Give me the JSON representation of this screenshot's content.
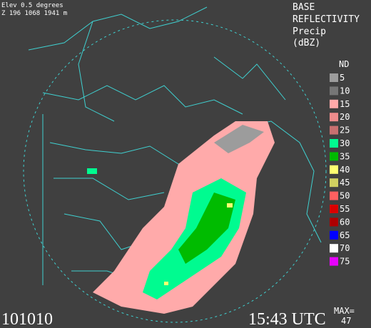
{
  "header": {
    "elevation": "Elev 0.5 degrees",
    "site_info": "Z 196 1068 1941 m"
  },
  "product": {
    "line1": "BASE",
    "line2": "REFLECTIVITY",
    "line3": "Precip",
    "line4": "(dBZ)"
  },
  "legend": {
    "no_data": "ND",
    "items": [
      {
        "label": "5",
        "color": "#9c9c9c"
      },
      {
        "label": "10",
        "color": "#767676"
      },
      {
        "label": "15",
        "color": "#ffaaaa"
      },
      {
        "label": "20",
        "color": "#ee8c8c"
      },
      {
        "label": "25",
        "color": "#c97070"
      },
      {
        "label": "30",
        "color": "#00fb90"
      },
      {
        "label": "35",
        "color": "#00bb00"
      },
      {
        "label": "40",
        "color": "#ffff70"
      },
      {
        "label": "45",
        "color": "#d0d060"
      },
      {
        "label": "50",
        "color": "#ff6060"
      },
      {
        "label": "55",
        "color": "#da0000"
      },
      {
        "label": "60",
        "color": "#ae0000"
      },
      {
        "label": "65",
        "color": "#0000ff"
      },
      {
        "label": "70",
        "color": "#ffffff"
      },
      {
        "label": "75",
        "color": "#e700ff"
      }
    ]
  },
  "footer": {
    "date": "101010",
    "time": "15:43 UTC",
    "max_label": "MAX=",
    "max_value": "47"
  }
}
